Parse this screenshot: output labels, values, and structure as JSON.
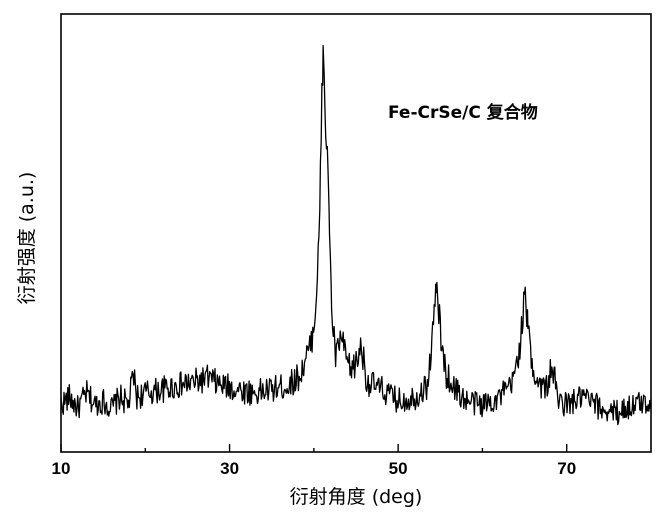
{
  "chart_data": {
    "type": "line",
    "title": "",
    "xlabel": "衍射角度 (deg)",
    "ylabel": "衍射强度 (a.u.)",
    "xlim": [
      10,
      80
    ],
    "ylim": [
      0,
      100
    ],
    "x_ticks": [
      10,
      30,
      50,
      70
    ],
    "x_tick_labels": [
      "10",
      "30",
      "50",
      "70"
    ],
    "y_ticks_shown": false,
    "grid": false,
    "annotation": "Fe-CrSe/C 复合物",
    "series": [
      {
        "x": [
          10,
          11,
          12,
          13,
          14,
          15,
          16,
          17,
          18,
          18.6,
          19,
          20,
          22,
          24,
          26,
          27.5,
          29,
          31,
          33,
          35,
          37,
          38.5,
          39,
          39.6,
          40.2,
          40.7,
          41.1,
          41.3,
          41.5,
          41.8,
          42.1,
          42.6,
          43.2,
          43.6,
          44.3,
          45.1,
          45.6,
          46.3,
          48,
          50,
          52,
          53.5,
          54.2,
          54.6,
          55.1,
          55.7,
          56.5,
          58,
          60,
          62,
          63.5,
          64.5,
          65.0,
          65.4,
          65.9,
          66.6,
          67.5,
          68.3,
          69,
          70,
          72,
          74,
          76,
          78,
          80
        ],
        "y": [
          4,
          6,
          3,
          7,
          4,
          5,
          3,
          6,
          4,
          12,
          6,
          7,
          8,
          9,
          10,
          11,
          9,
          8,
          7,
          8,
          9,
          12,
          16,
          19,
          28,
          55,
          98,
          83,
          71,
          56,
          29,
          16,
          22,
          18,
          13,
          15,
          20,
          10,
          8,
          5,
          6,
          9,
          25,
          36,
          20,
          12,
          9,
          5,
          4,
          6,
          9,
          20,
          33,
          24,
          14,
          10,
          8,
          14,
          5,
          4,
          6,
          3,
          2,
          4,
          5
        ]
      }
    ]
  }
}
